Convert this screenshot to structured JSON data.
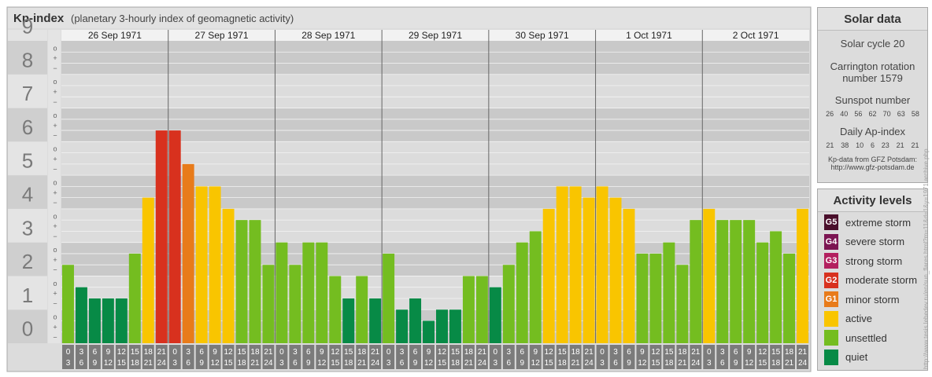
{
  "header": {
    "title": "Kp-index",
    "subtitle": "(planetary 3-hourly index of geomagnetic activity)"
  },
  "chart_data": {
    "type": "bar",
    "title": "Kp-index",
    "subtitle": "(planetary 3-hourly index of geomagnetic activity)",
    "ylim": [
      0,
      9
    ],
    "y_tick_labels": [
      "0",
      "1",
      "2",
      "3",
      "4",
      "5",
      "6",
      "7",
      "8",
      "9"
    ],
    "y_minor_tick_labels": [
      "−",
      "o",
      "+"
    ],
    "days": [
      "26 Sep 1971",
      "27 Sep 1971",
      "28 Sep 1971",
      "29 Sep 1971",
      "30 Sep 1971",
      "1 Oct 1971",
      "2 Oct 1971"
    ],
    "interval_labels": [
      [
        "0",
        "3"
      ],
      [
        "3",
        "6"
      ],
      [
        "6",
        "9"
      ],
      [
        "9",
        "12"
      ],
      [
        "12",
        "15"
      ],
      [
        "15",
        "18"
      ],
      [
        "18",
        "21"
      ],
      [
        "21",
        "24"
      ]
    ],
    "values": [
      [
        2.333,
        1.667,
        1.333,
        1.333,
        1.333,
        2.667,
        4.333,
        6.333
      ],
      [
        6.333,
        5.333,
        4.667,
        4.667,
        4.0,
        3.667,
        3.667,
        2.333
      ],
      [
        3.0,
        2.333,
        3.0,
        3.0,
        2.0,
        1.333,
        2.0,
        1.333
      ],
      [
        2.667,
        1.0,
        1.333,
        0.667,
        1.0,
        1.0,
        2.0,
        2.0
      ],
      [
        1.667,
        2.333,
        3.0,
        3.333,
        4.0,
        4.667,
        4.667,
        4.333
      ],
      [
        4.667,
        4.333,
        4.0,
        2.667,
        2.667,
        3.0,
        2.333,
        3.667
      ],
      [
        4.0,
        3.667,
        3.667,
        3.667,
        3.0,
        3.333,
        2.667,
        4.0
      ]
    ],
    "grid": true
  },
  "solar_data": {
    "title": "Solar data",
    "solar_cycle": "Solar cycle 20",
    "carrington_line1": "Carrington rotation",
    "carrington_line2": "number 1579",
    "sunspot_label": "Sunspot number",
    "sunspot_values": [
      "26",
      "40",
      "56",
      "62",
      "70",
      "63",
      "58"
    ],
    "ap_label": "Daily Ap-index",
    "ap_values": [
      "21",
      "38",
      "10",
      "6",
      "23",
      "21",
      "21"
    ],
    "source_line1": "Kp-data from GFZ Potsdam:",
    "source_line2": "http://www.gfz-potsdam.de"
  },
  "activity_levels": {
    "title": "Activity levels",
    "items": [
      {
        "badge": "G5",
        "label": "extreme storm",
        "color": "#4a0f2b"
      },
      {
        "badge": "G4",
        "label": "severe storm",
        "color": "#7c1552"
      },
      {
        "badge": "G3",
        "label": "strong storm",
        "color": "#b3205f"
      },
      {
        "badge": "G2",
        "label": "moderate storm",
        "color": "#d8311e"
      },
      {
        "badge": "G1",
        "label": "minor storm",
        "color": "#e87b1a"
      },
      {
        "badge": "",
        "label": "active",
        "color": "#f9c500"
      },
      {
        "badge": "",
        "label": "unsettled",
        "color": "#74bd20"
      },
      {
        "badge": "",
        "label": "quiet",
        "color": "#078a46"
      }
    ]
  },
  "credit": "http://www.tesis.lebedev.ru/en/sun_flares.html?m=11&d=1&y=1971 archive.php"
}
